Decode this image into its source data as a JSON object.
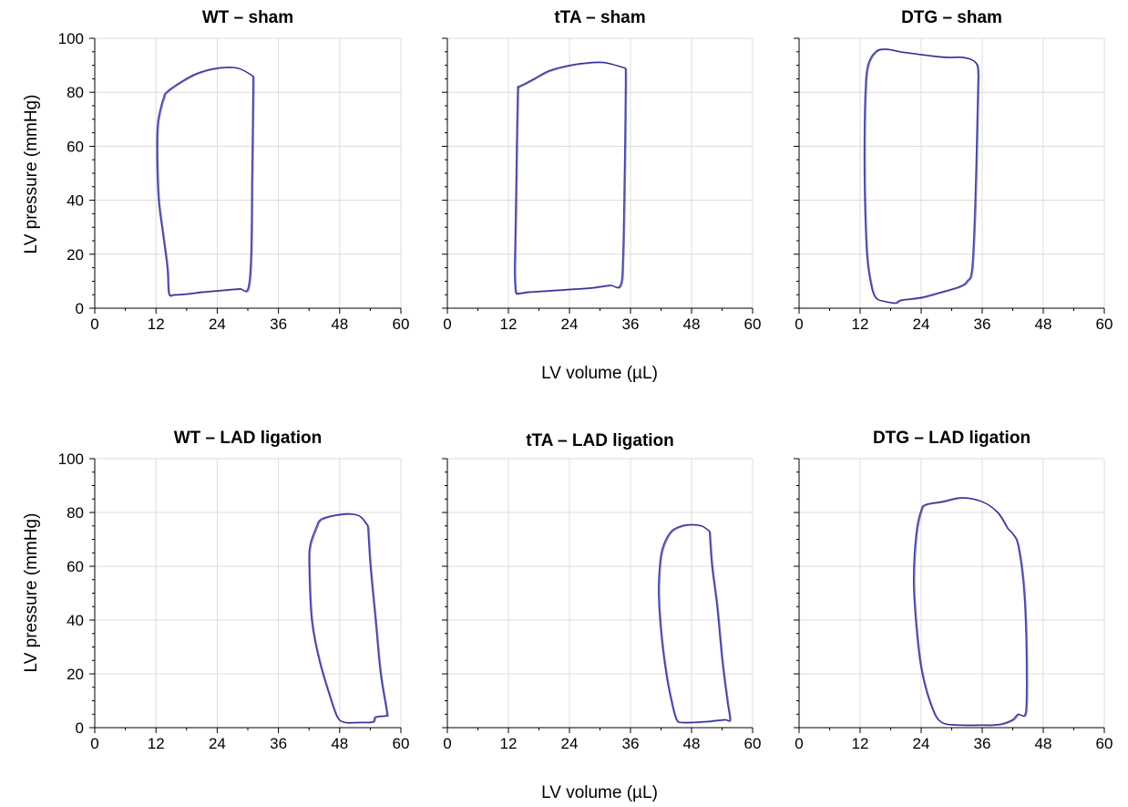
{
  "shared": {
    "ylabel": "LV pressure (mmHg)",
    "xlabel": "LV volume (µL)",
    "loop_color": "#1a1a8c",
    "grid": true
  },
  "chart_data": [
    {
      "type": "line",
      "title": "WT – sham",
      "xlim": [
        0,
        60
      ],
      "ylim": [
        0,
        100
      ],
      "xticks": [
        "0",
        "12",
        "24",
        "36",
        "48",
        "60"
      ],
      "yticks": [
        "0",
        "20",
        "40",
        "60",
        "80",
        "100"
      ],
      "series": [
        {
          "x": [
            31,
            28,
            24,
            20,
            17,
            14,
            13.5,
            13,
            12.3,
            12.2,
            12.5,
            13.3,
            14.2,
            14.5,
            15.5,
            18,
            21,
            24,
            27,
            28.5,
            30,
            30.6,
            30.8,
            31,
            31
          ],
          "y": [
            86,
            89,
            89,
            87,
            84,
            80,
            78,
            75,
            68,
            55,
            40,
            28,
            15,
            5.5,
            5,
            5.3,
            6,
            6.5,
            7,
            7.2,
            7.2,
            20,
            50,
            80,
            86
          ]
        }
      ]
    },
    {
      "type": "line",
      "title": "tTA – sham",
      "xlim": [
        0,
        60
      ],
      "ylim": [
        0,
        100
      ],
      "xticks": [
        "0",
        "12",
        "24",
        "36",
        "48",
        "60"
      ],
      "yticks": [
        "0",
        "20",
        "40",
        "60",
        "80",
        "100"
      ],
      "series": [
        {
          "x": [
            35,
            31,
            28,
            24,
            20,
            17,
            15,
            14,
            13.8,
            13.6,
            13.4,
            13.2,
            13.3,
            13.5,
            14,
            16,
            20,
            24,
            28,
            30,
            32,
            34,
            34.5,
            34.8,
            35,
            35
          ],
          "y": [
            89,
            91,
            91,
            90,
            88,
            85,
            83,
            82,
            80,
            60,
            35,
            15,
            8,
            5.5,
            5.5,
            6,
            6.5,
            7,
            7.5,
            8,
            8.5,
            8.5,
            20,
            50,
            80,
            89
          ]
        }
      ]
    },
    {
      "type": "line",
      "title": "DTG – sham",
      "xlim": [
        0,
        60
      ],
      "ylim": [
        0,
        100
      ],
      "xticks": [
        "0",
        "12",
        "24",
        "36",
        "48",
        "60"
      ],
      "yticks": [
        "0",
        "20",
        "40",
        "60",
        "80",
        "100"
      ],
      "series": [
        {
          "x": [
            35.2,
            35,
            34,
            32,
            29,
            26,
            24,
            20,
            17,
            15,
            13.5,
            13,
            12.8,
            12.9,
            13.3,
            14,
            15,
            17,
            19,
            20,
            24,
            28,
            31.5,
            33,
            34,
            34.6,
            35,
            35.2
          ],
          "y": [
            86,
            90,
            92,
            93,
            93,
            93.5,
            94,
            95,
            96,
            95,
            90,
            80,
            60,
            40,
            20,
            10,
            4,
            2.5,
            2,
            3,
            4,
            6,
            8,
            10,
            15,
            40,
            70,
            86
          ]
        }
      ]
    },
    {
      "type": "line",
      "title": "WT – LAD ligation",
      "xlim": [
        0,
        60
      ],
      "ylim": [
        0,
        100
      ],
      "xticks": [
        "0",
        "12",
        "24",
        "36",
        "48",
        "60"
      ],
      "yticks": [
        "0",
        "20",
        "40",
        "60",
        "80",
        "100"
      ],
      "series": [
        {
          "x": [
            53.5,
            52,
            50,
            47,
            45,
            44,
            43.5,
            42.2,
            42,
            42.5,
            44,
            46,
            47.5,
            49,
            52,
            54.5,
            55,
            57,
            57.2,
            56,
            55,
            54,
            53.5
          ],
          "y": [
            75,
            78.5,
            79.5,
            79,
            78,
            77,
            75,
            68,
            60,
            40,
            25,
            12,
            4,
            2,
            2,
            2.2,
            4,
            4.5,
            6,
            20,
            40,
            60,
            75
          ]
        }
      ]
    },
    {
      "type": "line",
      "title": "tTA – LAD ligation",
      "xlim": [
        0,
        60
      ],
      "ylim": [
        0,
        100
      ],
      "xticks": [
        "0",
        "12",
        "24",
        "36",
        "48",
        "60"
      ],
      "yticks": [
        "0",
        "20",
        "40",
        "60",
        "80",
        "100"
      ],
      "series": [
        {
          "x": [
            51.5,
            50,
            48,
            46,
            44,
            42.5,
            41.8,
            41.5,
            42,
            43,
            44,
            45,
            46,
            48,
            50,
            52,
            54.5,
            55.5,
            55,
            54,
            53,
            52,
            51.5
          ],
          "y": [
            73,
            75,
            75.5,
            75,
            73,
            68,
            62,
            50,
            35,
            20,
            10,
            3,
            2,
            2,
            2.2,
            2.5,
            3,
            3,
            10,
            25,
            45,
            60,
            73
          ]
        }
      ]
    },
    {
      "type": "line",
      "title": "DTG – LAD ligation",
      "xlim": [
        0,
        60
      ],
      "ylim": [
        0,
        100
      ],
      "xticks": [
        "0",
        "12",
        "24",
        "36",
        "48",
        "60"
      ],
      "yticks": [
        "0",
        "20",
        "40",
        "60",
        "80",
        "100"
      ],
      "series": [
        {
          "x": [
            41,
            39,
            36,
            32,
            28,
            25,
            24,
            23,
            22.5,
            23,
            24,
            26,
            28,
            32,
            36,
            38,
            40,
            42,
            43,
            44.5,
            44.7,
            44.5,
            44,
            43,
            42,
            41
          ],
          "y": [
            74,
            80,
            84,
            85.5,
            84,
            83,
            81,
            72,
            55,
            38,
            22,
            8,
            2,
            1,
            1,
            1,
            1.5,
            3,
            5,
            5.5,
            20,
            40,
            55,
            68,
            72,
            74
          ]
        }
      ]
    }
  ]
}
